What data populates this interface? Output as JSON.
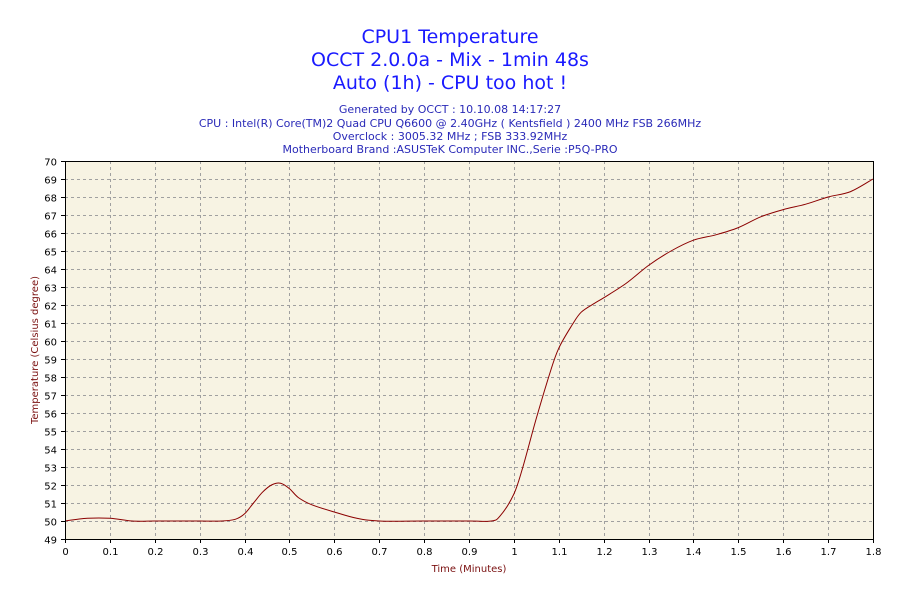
{
  "header": {
    "title": "CPU1 Temperature",
    "subtitle": "OCCT 2.0.0a - Mix - 1min 48s",
    "status": "Auto (1h) - CPU too hot !",
    "generated": "Generated by OCCT : 10.10.08 14:17:27",
    "cpu": "CPU : Intel(R) Core(TM)2 Quad CPU Q6600 @ 2.40GHz ( Kentsfield ) 2400 MHz FSB 266MHz",
    "overclock": "Overclock : 3005.32 MHz ; FSB 333.92MHz",
    "motherboard": "Motherboard Brand :ASUSTeK Computer INC.,Serie :P5Q-PRO"
  },
  "colors": {
    "plot_background": "#f7f3e3",
    "line": "#8b0000",
    "grid": "#a0a0a0",
    "title": "#1a1aff"
  },
  "chart_data": {
    "type": "line",
    "title": "CPU1 Temperature",
    "xlabel": "Time (Minutes)",
    "ylabel": "Temperature (Celsius degree)",
    "xlim": [
      0,
      1.8
    ],
    "ylim": [
      49,
      70
    ],
    "x_ticks": [
      "0",
      "0.1",
      "0.2",
      "0.3",
      "0.4",
      "0.5",
      "0.6",
      "0.7",
      "0.8",
      "0.9",
      "1",
      "1.1",
      "1.2",
      "1.3",
      "1.4",
      "1.5",
      "1.6",
      "1.7",
      "1.8"
    ],
    "y_ticks": [
      "49",
      "50",
      "51",
      "52",
      "53",
      "54",
      "55",
      "56",
      "57",
      "58",
      "59",
      "60",
      "61",
      "62",
      "63",
      "64",
      "65",
      "66",
      "67",
      "68",
      "69",
      "70"
    ],
    "grid": true,
    "series": [
      {
        "x": [
          0,
          0.05,
          0.1,
          0.15,
          0.2,
          0.25,
          0.3,
          0.35,
          0.38,
          0.4,
          0.42,
          0.44,
          0.46,
          0.48,
          0.5,
          0.52,
          0.55,
          0.6,
          0.65,
          0.7,
          0.8,
          0.9,
          0.95,
          0.97,
          1.0,
          1.02,
          1.05,
          1.08,
          1.1,
          1.13,
          1.15,
          1.18,
          1.2,
          1.25,
          1.3,
          1.35,
          1.4,
          1.45,
          1.5,
          1.55,
          1.6,
          1.65,
          1.7,
          1.75,
          1.8
        ],
        "values": [
          50.0,
          50.15,
          50.15,
          50.0,
          50.0,
          50.0,
          50.0,
          50.0,
          50.1,
          50.4,
          51.0,
          51.6,
          52.0,
          52.1,
          51.8,
          51.3,
          50.9,
          50.5,
          50.15,
          50.0,
          50.0,
          50.0,
          50.0,
          50.3,
          51.5,
          53.0,
          55.7,
          58.2,
          59.6,
          60.9,
          61.6,
          62.1,
          62.4,
          63.2,
          64.2,
          65.0,
          65.6,
          65.9,
          66.3,
          66.9,
          67.3,
          67.6,
          68.0,
          68.3,
          69.0
        ]
      }
    ]
  }
}
